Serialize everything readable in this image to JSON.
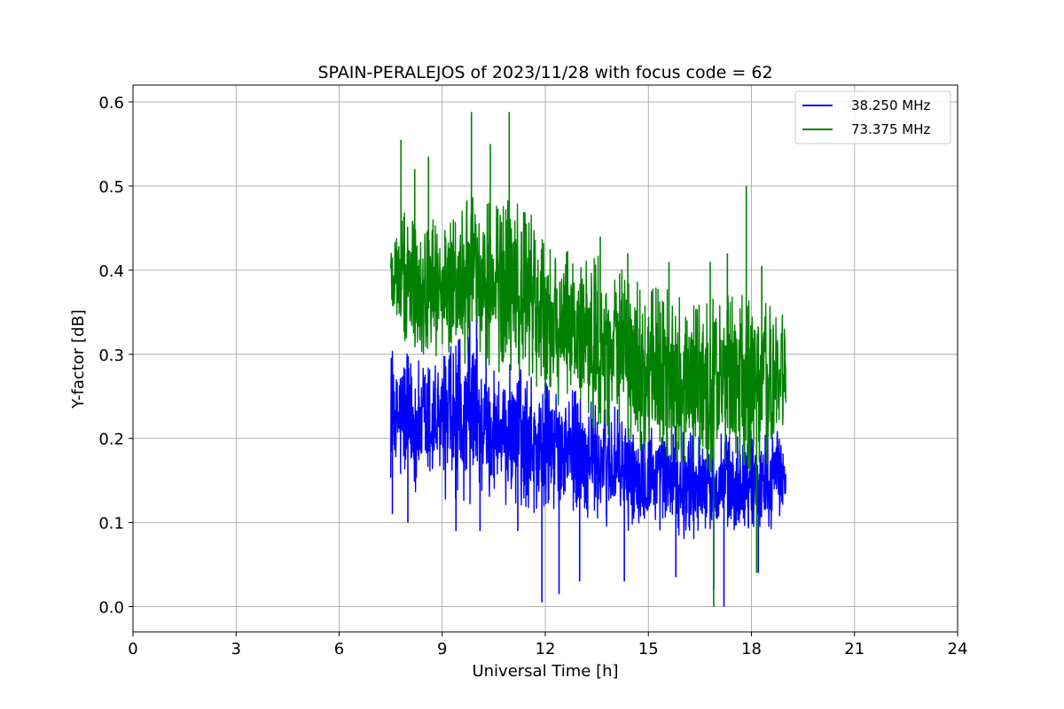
{
  "chart_data": {
    "type": "line",
    "title": "SPAIN-PERALEJOS of 2023/11/28 with focus code = 62",
    "xlabel": "Universal Time [h]",
    "ylabel": "Y-factor [dB]",
    "xlim": [
      0,
      24
    ],
    "ylim": [
      -0.03,
      0.62
    ],
    "xticks": [
      "0",
      "3",
      "6",
      "9",
      "12",
      "15",
      "18",
      "21",
      "24"
    ],
    "yticks": [
      "0.0",
      "0.1",
      "0.2",
      "0.3",
      "0.4",
      "0.5",
      "0.6"
    ],
    "grid": true,
    "legend_position": "top-right",
    "series": [
      {
        "name": "38.250 MHz",
        "color": "#0000ff",
        "envelope": {
          "x": [
            7.5,
            8.0,
            8.5,
            9.0,
            9.5,
            10.0,
            10.5,
            11.0,
            11.5,
            12.0,
            12.5,
            13.0,
            13.5,
            14.0,
            14.5,
            15.0,
            15.5,
            16.0,
            16.5,
            17.0,
            17.5,
            18.0,
            18.5,
            19.0
          ],
          "low": [
            0.15,
            0.13,
            0.14,
            0.13,
            0.12,
            0.12,
            0.12,
            0.12,
            0.11,
            0.11,
            0.11,
            0.11,
            0.1,
            0.09,
            0.09,
            0.09,
            0.09,
            0.08,
            0.08,
            0.08,
            0.08,
            0.09,
            0.09,
            0.1
          ],
          "high": [
            0.31,
            0.3,
            0.29,
            0.3,
            0.32,
            0.33,
            0.3,
            0.29,
            0.28,
            0.27,
            0.26,
            0.26,
            0.25,
            0.24,
            0.22,
            0.22,
            0.22,
            0.21,
            0.21,
            0.21,
            0.21,
            0.21,
            0.21,
            0.22
          ]
        },
        "spikes": [
          [
            7.55,
            0.11
          ],
          [
            8.0,
            0.1
          ],
          [
            9.4,
            0.09
          ],
          [
            10.1,
            0.09
          ],
          [
            11.2,
            0.09
          ],
          [
            11.9,
            0.005
          ],
          [
            12.4,
            0.015
          ],
          [
            13.0,
            0.03
          ],
          [
            14.3,
            0.03
          ],
          [
            15.8,
            0.035
          ],
          [
            16.9,
            0.02
          ],
          [
            17.2,
            0.0
          ],
          [
            18.2,
            0.04
          ],
          [
            10.0,
            0.37
          ],
          [
            9.8,
            0.35
          ]
        ]
      },
      {
        "name": "73.375 MHz",
        "color": "#008000",
        "envelope": {
          "x": [
            7.5,
            8.0,
            8.5,
            9.0,
            9.5,
            10.0,
            10.5,
            11.0,
            11.5,
            12.0,
            12.5,
            13.0,
            13.5,
            14.0,
            14.5,
            15.0,
            15.5,
            16.0,
            16.5,
            17.0,
            17.5,
            18.0,
            18.5,
            19.0
          ],
          "low": [
            0.32,
            0.3,
            0.29,
            0.3,
            0.28,
            0.29,
            0.28,
            0.27,
            0.25,
            0.24,
            0.23,
            0.22,
            0.21,
            0.2,
            0.19,
            0.18,
            0.17,
            0.16,
            0.16,
            0.16,
            0.16,
            0.16,
            0.17,
            0.2
          ],
          "high": [
            0.47,
            0.47,
            0.46,
            0.46,
            0.48,
            0.49,
            0.48,
            0.49,
            0.47,
            0.45,
            0.43,
            0.43,
            0.42,
            0.41,
            0.39,
            0.38,
            0.38,
            0.37,
            0.36,
            0.37,
            0.37,
            0.38,
            0.37,
            0.36
          ]
        },
        "spikes": [
          [
            7.8,
            0.555
          ],
          [
            8.6,
            0.535
          ],
          [
            9.85,
            0.588
          ],
          [
            10.95,
            0.588
          ],
          [
            10.4,
            0.55
          ],
          [
            8.2,
            0.52
          ],
          [
            13.6,
            0.44
          ],
          [
            14.4,
            0.42
          ],
          [
            15.6,
            0.41
          ],
          [
            16.8,
            0.41
          ],
          [
            17.85,
            0.5
          ],
          [
            18.3,
            0.405
          ],
          [
            16.9,
            0.0
          ],
          [
            18.15,
            0.04
          ],
          [
            17.3,
            0.42
          ]
        ]
      }
    ]
  }
}
